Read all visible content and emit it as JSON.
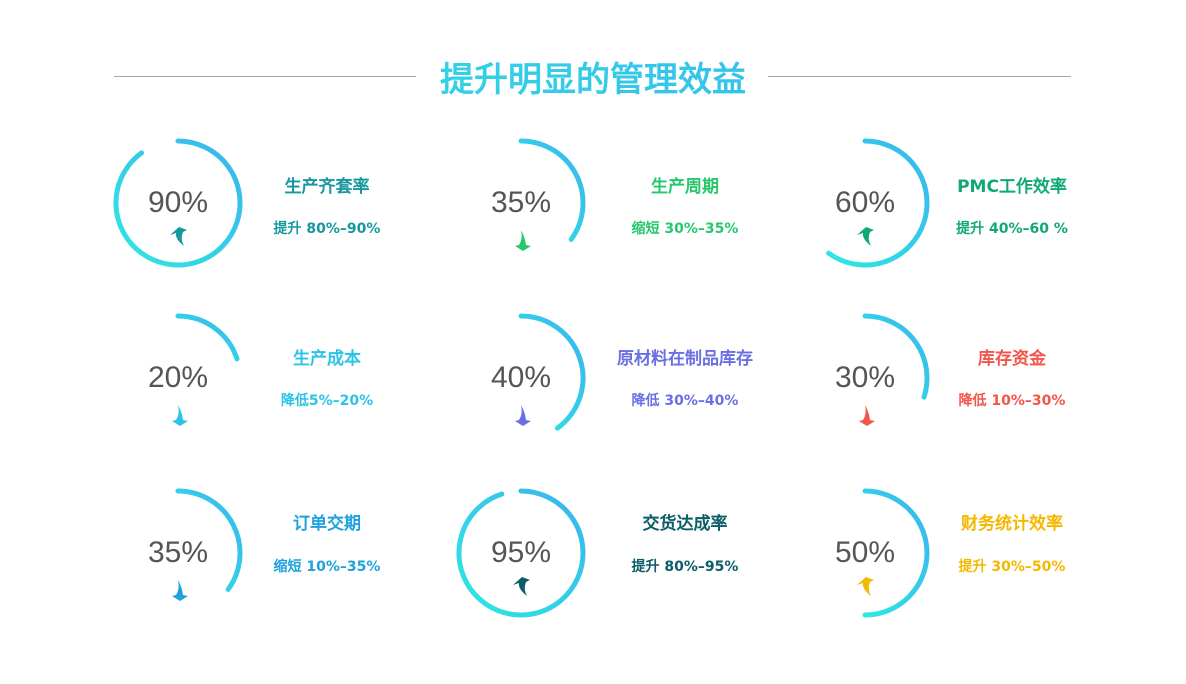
{
  "title": "提升明显的管理效益",
  "gradient": {
    "start": "#3ab4ee",
    "end": "#2ee8e2"
  },
  "items": [
    {
      "percent": "90%",
      "value": 90,
      "name": "生产齐套率",
      "desc": "提升 80%–90%",
      "color": "#16989e",
      "arrow": "up"
    },
    {
      "percent": "35%",
      "value": 35,
      "name": "生产周期",
      "desc": "缩短 30%–35%",
      "color": "#26c86c",
      "arrow": "down"
    },
    {
      "percent": "60%",
      "value": 60,
      "name": "PMC工作效率",
      "desc": "提升 40%–60 %",
      "color": "#10a873",
      "arrow": "up"
    },
    {
      "percent": "20%",
      "value": 20,
      "name": "生产成本",
      "desc": "降低5%–20%",
      "color": "#2cc3e6",
      "arrow": "down"
    },
    {
      "percent": "40%",
      "value": 40,
      "name": "原材料在制品库存",
      "desc": "降低 30%–40%",
      "color": "#6a70e2",
      "arrow": "down"
    },
    {
      "percent": "30%",
      "value": 30,
      "name": "库存资金",
      "desc": "降低 10%–30%",
      "color": "#f4554b",
      "arrow": "down"
    },
    {
      "percent": "35%",
      "value": 35,
      "name": "订单交期",
      "desc": "缩短 10%–35%",
      "color": "#1fa2dc",
      "arrow": "down"
    },
    {
      "percent": "95%",
      "value": 95,
      "name": "交货达成率",
      "desc": "提升 80%–95%",
      "color": "#0b5d66",
      "arrow": "up"
    },
    {
      "percent": "50%",
      "value": 50,
      "name": "财务统计效率",
      "desc": "提升 30%–50%",
      "color": "#f4b800",
      "arrow": "up"
    }
  ]
}
